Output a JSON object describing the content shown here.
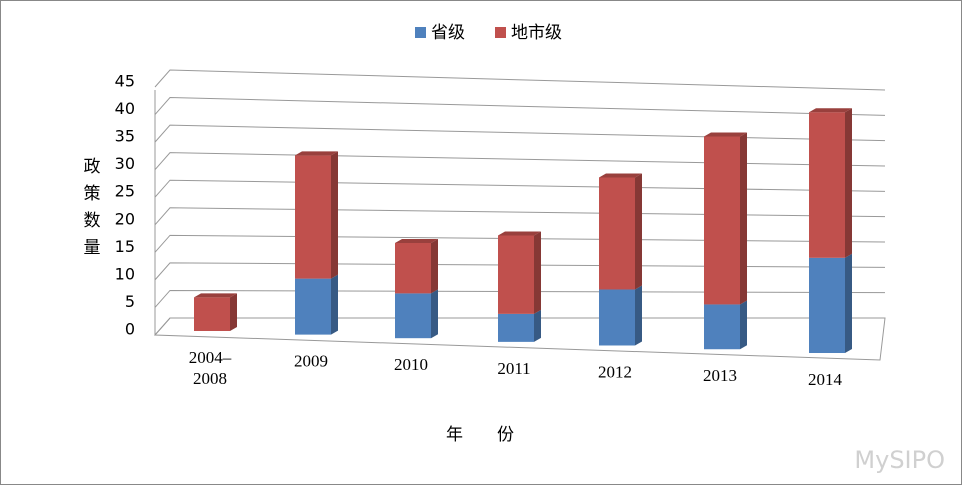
{
  "chart_data": {
    "type": "bar3d_stacked",
    "y_label": "政策数量",
    "x_label": "年　　份",
    "watermark": "MySIPO",
    "categories": [
      "2004–\n2008",
      "2009",
      "2010",
      "2011",
      "2012",
      "2013",
      "2014"
    ],
    "series": [
      {
        "name": "省级",
        "color": "#4f81bd",
        "values": [
          0,
          10,
          8,
          5,
          10,
          8,
          17
        ]
      },
      {
        "name": "地市级",
        "color": "#c0504d",
        "values": [
          6,
          22,
          9,
          14,
          20,
          30,
          26
        ]
      }
    ],
    "ylim": [
      0,
      45
    ],
    "yticks": [
      0,
      5,
      10,
      15,
      20,
      25,
      30,
      35,
      40,
      45
    ],
    "grid": true,
    "legend": "top"
  }
}
